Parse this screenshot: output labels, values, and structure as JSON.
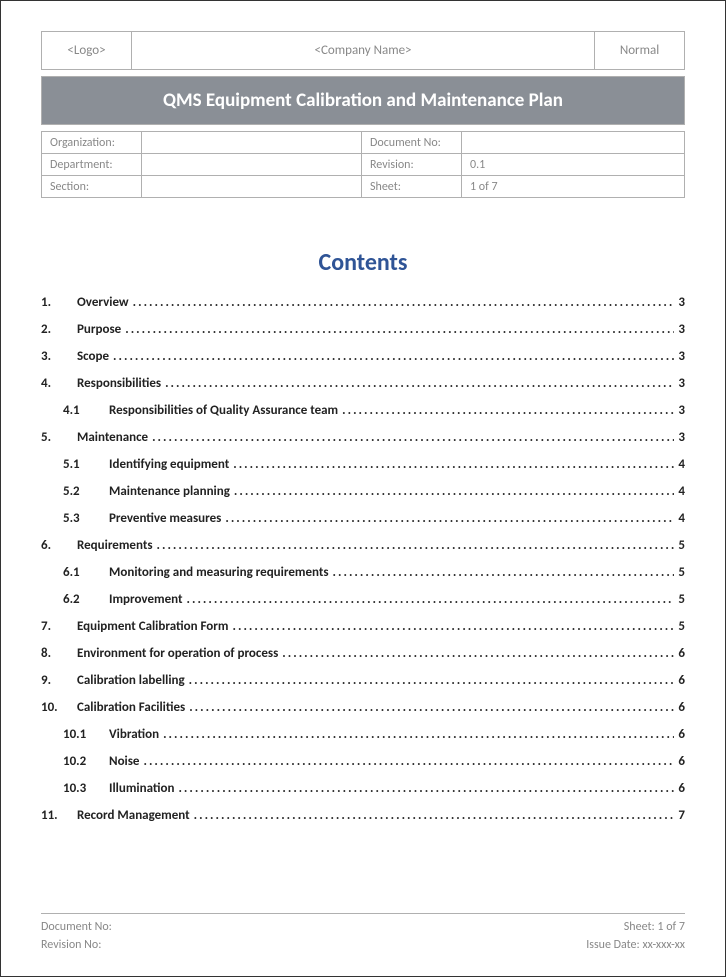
{
  "header": {
    "logo": "<Logo>",
    "company": "<Company Name>",
    "status": "Normal"
  },
  "title": "QMS Equipment Calibration and Maintenance Plan",
  "meta": {
    "organization_label": "Organization:",
    "organization_value": "",
    "docno_label": "Document No:",
    "docno_value": "",
    "department_label": "Department:",
    "department_value": "",
    "revision_label": "Revision:",
    "revision_value": "0.1",
    "section_label": "Section:",
    "section_value": "",
    "sheet_label": "Sheet:",
    "sheet_value": "1 of 7"
  },
  "contents_heading": "Contents",
  "toc": [
    {
      "level": 1,
      "num": "1.",
      "title": "Overview",
      "page": "3"
    },
    {
      "level": 1,
      "num": "2.",
      "title": "Purpose",
      "page": "3"
    },
    {
      "level": 1,
      "num": "3.",
      "title": "Scope",
      "page": "3"
    },
    {
      "level": 1,
      "num": "4.",
      "title": "Responsibilities",
      "page": "3"
    },
    {
      "level": 2,
      "num": "4.1",
      "title": "Responsibilities of Quality Assurance team",
      "page": "3"
    },
    {
      "level": 1,
      "num": "5.",
      "title": "Maintenance",
      "page": "3"
    },
    {
      "level": 2,
      "num": "5.1",
      "title": "Identifying equipment",
      "page": "4"
    },
    {
      "level": 2,
      "num": "5.2",
      "title": "Maintenance planning",
      "page": "4"
    },
    {
      "level": 2,
      "num": "5.3",
      "title": "Preventive measures",
      "page": "4"
    },
    {
      "level": 1,
      "num": "6.",
      "title": "Requirements",
      "page": "5"
    },
    {
      "level": 2,
      "num": "6.1",
      "title": "Monitoring and measuring requirements",
      "page": "5"
    },
    {
      "level": 2,
      "num": "6.2",
      "title": "Improvement",
      "page": "5"
    },
    {
      "level": 1,
      "num": "7.",
      "title": "Equipment Calibration Form",
      "page": "5"
    },
    {
      "level": 1,
      "num": "8.",
      "title": "Environment for operation of process",
      "page": "6"
    },
    {
      "level": 1,
      "num": "9.",
      "title": "Calibration labelling",
      "page": "6"
    },
    {
      "level": 1,
      "num": "10.",
      "title": "Calibration Facilities",
      "page": "6"
    },
    {
      "level": 2,
      "num": "10.1",
      "title": "Vibration",
      "page": "6"
    },
    {
      "level": 2,
      "num": "10.2",
      "title": "Noise",
      "page": "6"
    },
    {
      "level": 2,
      "num": "10.3",
      "title": "Illumination",
      "page": "6"
    },
    {
      "level": 1,
      "num": "11.",
      "title": "Record Management",
      "page": "7"
    }
  ],
  "footer": {
    "docno_label": "Document No:",
    "revno_label": "Revision No:",
    "sheet_label": "Sheet: 1 of 7",
    "issue_label": "Issue Date: xx-xxx-xx"
  }
}
